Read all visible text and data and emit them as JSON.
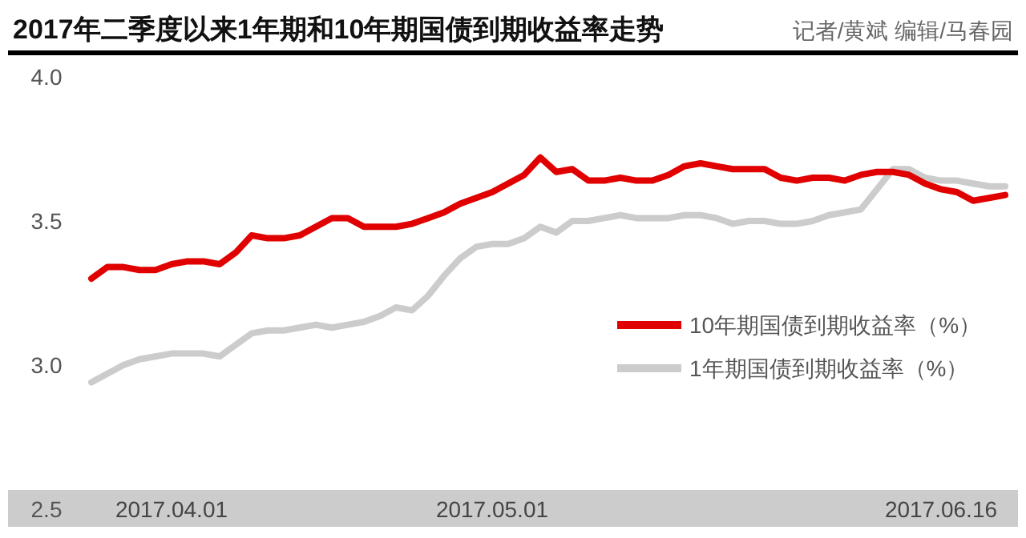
{
  "chart_data": {
    "type": "line",
    "title": "2017年二季度以来1年期和10年期国债到期收益率走势",
    "annotations": [
      "记者/黄斌 编辑/马春园"
    ],
    "categories": [
      null,
      null,
      null,
      null,
      null,
      "2017.04.01",
      null,
      null,
      null,
      null,
      null,
      null,
      null,
      null,
      null,
      null,
      null,
      null,
      null,
      null,
      null,
      null,
      null,
      null,
      null,
      "2017.05.01",
      null,
      null,
      null,
      null,
      null,
      null,
      null,
      null,
      null,
      null,
      null,
      null,
      null,
      null,
      null,
      null,
      null,
      null,
      null,
      null,
      null,
      null,
      null,
      null,
      null,
      null,
      null,
      "2017.06.16",
      null,
      null,
      null,
      null
    ],
    "series": [
      {
        "name": "10年期国债到期收益率（%）",
        "color": "#e00000",
        "values": [
          3.3,
          3.34,
          3.34,
          3.33,
          3.33,
          3.35,
          3.36,
          3.36,
          3.35,
          3.39,
          3.45,
          3.44,
          3.44,
          3.45,
          3.48,
          3.51,
          3.51,
          3.48,
          3.48,
          3.48,
          3.49,
          3.51,
          3.53,
          3.56,
          3.58,
          3.6,
          3.63,
          3.66,
          3.72,
          3.67,
          3.68,
          3.64,
          3.64,
          3.65,
          3.64,
          3.64,
          3.66,
          3.69,
          3.7,
          3.69,
          3.68,
          3.68,
          3.68,
          3.65,
          3.64,
          3.65,
          3.65,
          3.64,
          3.66,
          3.67,
          3.67,
          3.66,
          3.63,
          3.61,
          3.6,
          3.57,
          3.58,
          3.59
        ]
      },
      {
        "name": "1年期国债到期收益率（%）",
        "color": "#cccccc",
        "values": [
          2.94,
          2.97,
          3.0,
          3.02,
          3.03,
          3.04,
          3.04,
          3.04,
          3.03,
          3.07,
          3.11,
          3.12,
          3.12,
          3.13,
          3.14,
          3.13,
          3.14,
          3.15,
          3.17,
          3.2,
          3.19,
          3.24,
          3.31,
          3.37,
          3.41,
          3.42,
          3.42,
          3.44,
          3.48,
          3.46,
          3.5,
          3.5,
          3.51,
          3.52,
          3.51,
          3.51,
          3.51,
          3.52,
          3.52,
          3.51,
          3.49,
          3.5,
          3.5,
          3.49,
          3.49,
          3.5,
          3.52,
          3.53,
          3.54,
          3.61,
          3.68,
          3.68,
          3.65,
          3.64,
          3.64,
          3.63,
          3.62,
          3.62
        ]
      }
    ],
    "ylim": [
      2.5,
      4.0
    ],
    "yticks": [
      2.5,
      {
        "value": 3,
        "label": "3.0"
      },
      3.5,
      {
        "value": 4,
        "label": "4.0"
      }
    ],
    "grid": false,
    "legend": "right"
  }
}
